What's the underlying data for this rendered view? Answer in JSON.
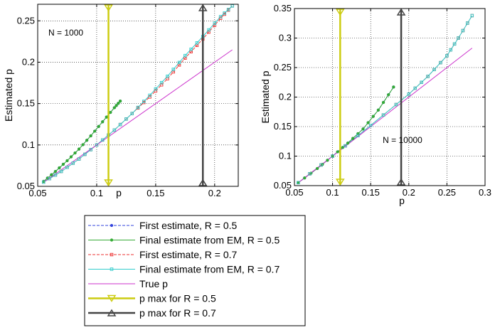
{
  "colors": {
    "first_r05": "#3344dd",
    "final_r05": "#33aa33",
    "first_r07": "#ee3333",
    "final_r07": "#33cccc",
    "true_p": "#cc33cc",
    "pmax_r05": "#cccc11",
    "pmax_r07": "#444444"
  },
  "legend": {
    "items": [
      {
        "label": "First estimate, R = 0.5",
        "color": "#3344dd",
        "dash": "4,2",
        "marker": "dot"
      },
      {
        "label": "Final estimate from EM, R =  0.5",
        "color": "#33aa33",
        "dash": "",
        "marker": "dot"
      },
      {
        "label": "First estimate, R = 0.7",
        "color": "#ee3333",
        "dash": "4,2",
        "marker": "square"
      },
      {
        "label": "Final estimate from EM, R = 0.7",
        "color": "#33cccc",
        "dash": "",
        "marker": "square"
      },
      {
        "label": "True p",
        "color": "#cc33cc",
        "dash": "",
        "marker": "none"
      },
      {
        "label": "p max for R = 0.5",
        "color": "#cccc11",
        "dash": "",
        "marker": "tri-down"
      },
      {
        "label": "p max for R = 0.7",
        "color": "#444444",
        "dash": "",
        "marker": "tri-up"
      }
    ]
  },
  "chart_data": [
    {
      "type": "line",
      "title": "",
      "xlabel": "p",
      "ylabel": "Estimated p",
      "annotation": "N = 1000",
      "xlim": [
        0.05,
        0.22
      ],
      "ylim": [
        0.05,
        0.27
      ],
      "xticks": [
        0.05,
        0.1,
        0.15,
        0.2
      ],
      "xtick_labels": [
        "0.05",
        "0.1",
        "0.15",
        "0.2"
      ],
      "yticks": [
        0.05,
        0.1,
        0.15,
        0.2,
        0.25
      ],
      "ytick_labels": [
        "0.05",
        "0.1",
        "0.15",
        "0.2",
        "0.25"
      ],
      "grid": true,
      "series": [
        {
          "name": "First estimate, R = 0.5",
          "key": "first_r05",
          "x": [
            0.055,
            0.065,
            0.075,
            0.085,
            0.095,
            0.105,
            0.115,
            0.12
          ],
          "y": [
            0.056,
            0.068,
            0.081,
            0.095,
            0.111,
            0.128,
            0.145,
            0.153
          ]
        },
        {
          "name": "Final estimate from EM, R = 0.5",
          "key": "final_r05",
          "x": [
            0.055,
            0.065,
            0.075,
            0.085,
            0.095,
            0.105,
            0.115,
            0.12
          ],
          "y": [
            0.056,
            0.068,
            0.081,
            0.095,
            0.111,
            0.128,
            0.145,
            0.153
          ]
        },
        {
          "name": "First estimate, R = 0.7",
          "key": "first_r07",
          "x": [
            0.055,
            0.07,
            0.085,
            0.1,
            0.115,
            0.13,
            0.145,
            0.16,
            0.175,
            0.19,
            0.205,
            0.215
          ],
          "y": [
            0.055,
            0.068,
            0.083,
            0.1,
            0.118,
            0.138,
            0.158,
            0.18,
            0.205,
            0.228,
            0.253,
            0.268
          ]
        },
        {
          "name": "Final estimate from EM, R = 0.7",
          "key": "final_r07",
          "x": [
            0.055,
            0.07,
            0.085,
            0.1,
            0.115,
            0.13,
            0.145,
            0.16,
            0.175,
            0.19,
            0.205,
            0.215
          ],
          "y": [
            0.055,
            0.068,
            0.083,
            0.1,
            0.118,
            0.138,
            0.16,
            0.183,
            0.208,
            0.231,
            0.255,
            0.268
          ]
        },
        {
          "name": "True p",
          "key": "true_p",
          "x": [
            0.055,
            0.215
          ],
          "y": [
            0.055,
            0.215
          ]
        }
      ],
      "vlines": [
        {
          "name": "p max for R = 0.5",
          "key": "pmax_r05",
          "x": 0.11
        },
        {
          "name": "p max for R = 0.7",
          "key": "pmax_r07",
          "x": 0.19
        }
      ]
    },
    {
      "type": "line",
      "title": "",
      "xlabel": "p",
      "ylabel": "Estimated p",
      "annotation": "N = 10000",
      "xlim": [
        0.05,
        0.3
      ],
      "ylim": [
        0.05,
        0.35
      ],
      "xticks": [
        0.05,
        0.1,
        0.15,
        0.2,
        0.25,
        0.3
      ],
      "xtick_labels": [
        "0.05",
        "0.1",
        "0.15",
        "0.2",
        "0.25",
        "0.3"
      ],
      "yticks": [
        0.05,
        0.1,
        0.15,
        0.2,
        0.25,
        0.3,
        0.35
      ],
      "ytick_labels": [
        "0.05",
        "0.1",
        "0.15",
        "0.2",
        "0.25",
        "0.3",
        "0.35"
      ],
      "grid": true,
      "series": [
        {
          "name": "First estimate, R = 0.5",
          "key": "first_r05",
          "x": [
            0.055,
            0.08,
            0.1,
            0.12,
            0.14,
            0.16,
            0.18
          ],
          "y": [
            0.055,
            0.079,
            0.1,
            0.122,
            0.146,
            0.178,
            0.217
          ]
        },
        {
          "name": "Final estimate from EM, R = 0.5",
          "key": "final_r05",
          "x": [
            0.055,
            0.08,
            0.1,
            0.12,
            0.14,
            0.16,
            0.18
          ],
          "y": [
            0.055,
            0.079,
            0.1,
            0.122,
            0.146,
            0.178,
            0.217
          ]
        },
        {
          "name": "First estimate, R = 0.7",
          "key": "first_r07",
          "x": [
            0.055,
            0.1,
            0.15,
            0.2,
            0.225,
            0.25,
            0.265,
            0.283
          ],
          "y": [
            0.055,
            0.1,
            0.152,
            0.205,
            0.235,
            0.27,
            0.3,
            0.338
          ]
        },
        {
          "name": "Final estimate from EM, R = 0.7",
          "key": "final_r07",
          "x": [
            0.055,
            0.1,
            0.15,
            0.2,
            0.225,
            0.25,
            0.265,
            0.283
          ],
          "y": [
            0.055,
            0.1,
            0.152,
            0.205,
            0.235,
            0.27,
            0.3,
            0.338
          ]
        },
        {
          "name": "True p",
          "key": "true_p",
          "x": [
            0.055,
            0.283
          ],
          "y": [
            0.055,
            0.283
          ]
        }
      ],
      "vlines": [
        {
          "name": "p max for R = 0.5",
          "key": "pmax_r05",
          "x": 0.11
        },
        {
          "name": "p max for R = 0.7",
          "key": "pmax_r07",
          "x": 0.19
        }
      ]
    }
  ]
}
